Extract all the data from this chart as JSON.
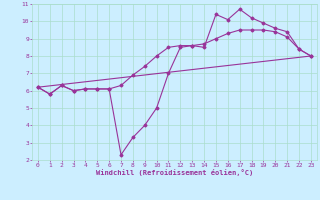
{
  "xlabel": "Windchill (Refroidissement éolien,°C)",
  "background_color": "#cceeff",
  "grid_color": "#aaddcc",
  "line_color": "#993399",
  "xlim": [
    -0.5,
    23.5
  ],
  "ylim": [
    2,
    11
  ],
  "xticks": [
    0,
    1,
    2,
    3,
    4,
    5,
    6,
    7,
    8,
    9,
    10,
    11,
    12,
    13,
    14,
    15,
    16,
    17,
    18,
    19,
    20,
    21,
    22,
    23
  ],
  "yticks": [
    2,
    3,
    4,
    5,
    6,
    7,
    8,
    9,
    10,
    11
  ],
  "line1_x": [
    0,
    1,
    2,
    3,
    4,
    5,
    6,
    7,
    8,
    9,
    10,
    11,
    12,
    13,
    14,
    15,
    16,
    17,
    18,
    19,
    20,
    21,
    22,
    23
  ],
  "line1_y": [
    6.2,
    5.8,
    6.3,
    6.0,
    6.1,
    6.1,
    6.1,
    2.3,
    3.3,
    4.0,
    5.0,
    7.0,
    8.5,
    8.6,
    8.5,
    10.4,
    10.1,
    10.7,
    10.2,
    9.9,
    9.6,
    9.4,
    8.4,
    8.0
  ],
  "line2_x": [
    0,
    1,
    2,
    3,
    4,
    5,
    6,
    7,
    8,
    9,
    10,
    11,
    12,
    13,
    14,
    15,
    16,
    17,
    18,
    19,
    20,
    21,
    22,
    23
  ],
  "line2_y": [
    6.2,
    5.8,
    6.3,
    6.0,
    6.1,
    6.1,
    6.1,
    6.3,
    6.9,
    7.4,
    8.0,
    8.5,
    8.6,
    8.6,
    8.7,
    9.0,
    9.3,
    9.5,
    9.5,
    9.5,
    9.4,
    9.1,
    8.4,
    8.0
  ],
  "line3_x": [
    0,
    23
  ],
  "line3_y": [
    6.2,
    8.0
  ]
}
